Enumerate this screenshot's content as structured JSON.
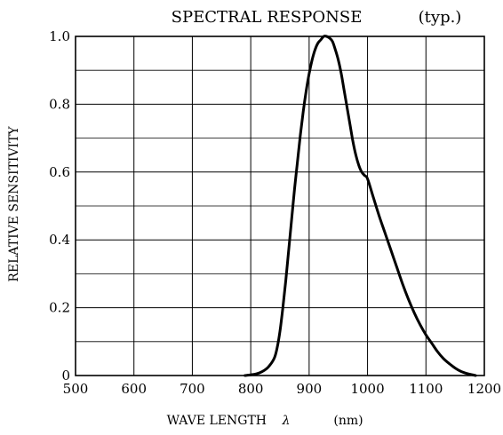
{
  "chart_data": {
    "type": "line",
    "title": "SPECTRAL RESPONSE",
    "subtitle": "(typ.)",
    "xlabel": "WAVE LENGTH",
    "xlabel_symbol": "λ",
    "xlabel_unit": "(nm)",
    "ylabel": "RELATIVE SENSITIVITY",
    "xlim": [
      500,
      1200
    ],
    "ylim": [
      0,
      1.0
    ],
    "x_ticks": [
      500,
      600,
      700,
      800,
      900,
      1000,
      1100,
      1200
    ],
    "x_tick_labels": [
      "500",
      "600",
      "700",
      "800",
      "900",
      "1000",
      "1100",
      "1200"
    ],
    "y_ticks": [
      0,
      0.2,
      0.4,
      0.6,
      0.8,
      1.0
    ],
    "y_tick_labels": [
      "0",
      "0.2",
      "0.4",
      "0.6",
      "0.8",
      "1.0"
    ],
    "y_minor_gridlines": [
      0.1,
      0.3,
      0.5,
      0.7,
      0.9
    ],
    "grid": true,
    "series": [
      {
        "x": [
          790,
          800,
          810,
          820,
          830,
          840,
          845,
          850,
          855,
          860,
          865,
          870,
          875,
          880,
          885,
          890,
          895,
          900,
          905,
          910,
          915,
          920,
          925,
          930,
          935,
          940,
          945,
          950,
          955,
          960,
          965,
          970,
          975,
          980,
          985,
          990,
          995,
          1000,
          1010,
          1020,
          1030,
          1040,
          1050,
          1060,
          1070,
          1080,
          1090,
          1100,
          1110,
          1120,
          1130,
          1140,
          1150,
          1160,
          1170,
          1180,
          1185
        ],
        "y": [
          0.0,
          0.002,
          0.005,
          0.012,
          0.025,
          0.05,
          0.08,
          0.13,
          0.2,
          0.28,
          0.37,
          0.46,
          0.55,
          0.63,
          0.71,
          0.78,
          0.84,
          0.89,
          0.93,
          0.96,
          0.98,
          0.99,
          1.0,
          1.0,
          0.995,
          0.985,
          0.96,
          0.93,
          0.89,
          0.84,
          0.79,
          0.74,
          0.69,
          0.65,
          0.62,
          0.6,
          0.59,
          0.58,
          0.525,
          0.47,
          0.42,
          0.37,
          0.32,
          0.27,
          0.225,
          0.185,
          0.15,
          0.12,
          0.095,
          0.07,
          0.05,
          0.035,
          0.022,
          0.012,
          0.006,
          0.002,
          0.0
        ]
      }
    ]
  }
}
